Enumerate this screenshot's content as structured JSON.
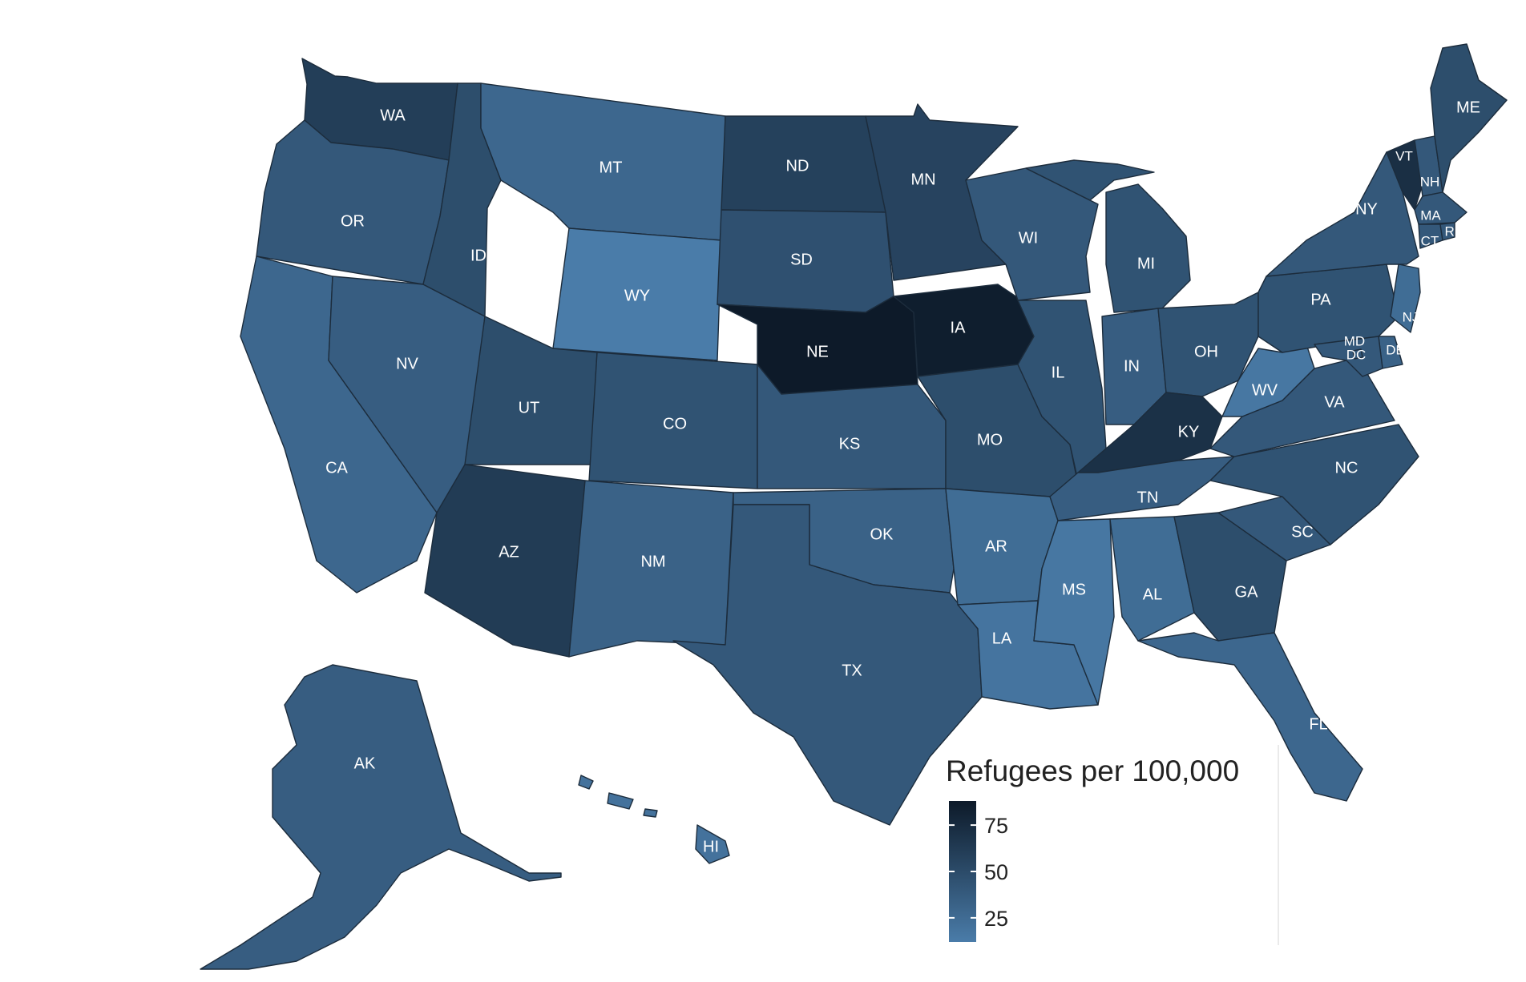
{
  "legend": {
    "title": "Refugees per 100,000",
    "ticks": [
      {
        "label": "75",
        "value": 75
      },
      {
        "label": "50",
        "value": 50
      },
      {
        "label": "25",
        "value": 25
      }
    ],
    "range": [
      12,
      88
    ],
    "color_low": "#4a7ca9",
    "color_high": "#0d1a29"
  },
  "states": [
    {
      "abbr": "WA",
      "value": 60
    },
    {
      "abbr": "OR",
      "value": 40
    },
    {
      "abbr": "CA",
      "value": 28
    },
    {
      "abbr": "NV",
      "value": 36
    },
    {
      "abbr": "ID",
      "value": 48
    },
    {
      "abbr": "MT",
      "value": 28
    },
    {
      "abbr": "WY",
      "value": 10
    },
    {
      "abbr": "UT",
      "value": 48
    },
    {
      "abbr": "AZ",
      "value": 62
    },
    {
      "abbr": "CO",
      "value": 44
    },
    {
      "abbr": "NM",
      "value": 32
    },
    {
      "abbr": "ND",
      "value": 58
    },
    {
      "abbr": "SD",
      "value": 46
    },
    {
      "abbr": "NE",
      "value": 88
    },
    {
      "abbr": "KS",
      "value": 40
    },
    {
      "abbr": "OK",
      "value": 32
    },
    {
      "abbr": "TX",
      "value": 40
    },
    {
      "abbr": "MN",
      "value": 56
    },
    {
      "abbr": "IA",
      "value": 85
    },
    {
      "abbr": "MO",
      "value": 48
    },
    {
      "abbr": "AR",
      "value": 24
    },
    {
      "abbr": "LA",
      "value": 18
    },
    {
      "abbr": "WI",
      "value": 40
    },
    {
      "abbr": "IL",
      "value": 44
    },
    {
      "abbr": "MI",
      "value": 44
    },
    {
      "abbr": "IN",
      "value": 36
    },
    {
      "abbr": "OH",
      "value": 44
    },
    {
      "abbr": "KY",
      "value": 70
    },
    {
      "abbr": "TN",
      "value": 36
    },
    {
      "abbr": "MS",
      "value": 16
    },
    {
      "abbr": "AL",
      "value": 24
    },
    {
      "abbr": "GA",
      "value": 48
    },
    {
      "abbr": "FL",
      "value": 28
    },
    {
      "abbr": "SC",
      "value": 40
    },
    {
      "abbr": "NC",
      "value": 44
    },
    {
      "abbr": "VA",
      "value": 40
    },
    {
      "abbr": "WV",
      "value": 16
    },
    {
      "abbr": "PA",
      "value": 44
    },
    {
      "abbr": "NY",
      "value": 40
    },
    {
      "abbr": "VT",
      "value": 72
    },
    {
      "abbr": "NH",
      "value": 40
    },
    {
      "abbr": "ME",
      "value": 48
    },
    {
      "abbr": "MA",
      "value": 40
    },
    {
      "abbr": "CT",
      "value": 40
    },
    {
      "abbr": "RI",
      "value": 40
    },
    {
      "abbr": "NJ",
      "value": 24
    },
    {
      "abbr": "DE",
      "value": 32
    },
    {
      "abbr": "MD",
      "value": 40
    },
    {
      "abbr": "DC",
      "value": 40
    },
    {
      "abbr": "AK",
      "value": 36
    },
    {
      "abbr": "HI",
      "value": 20
    }
  ]
}
